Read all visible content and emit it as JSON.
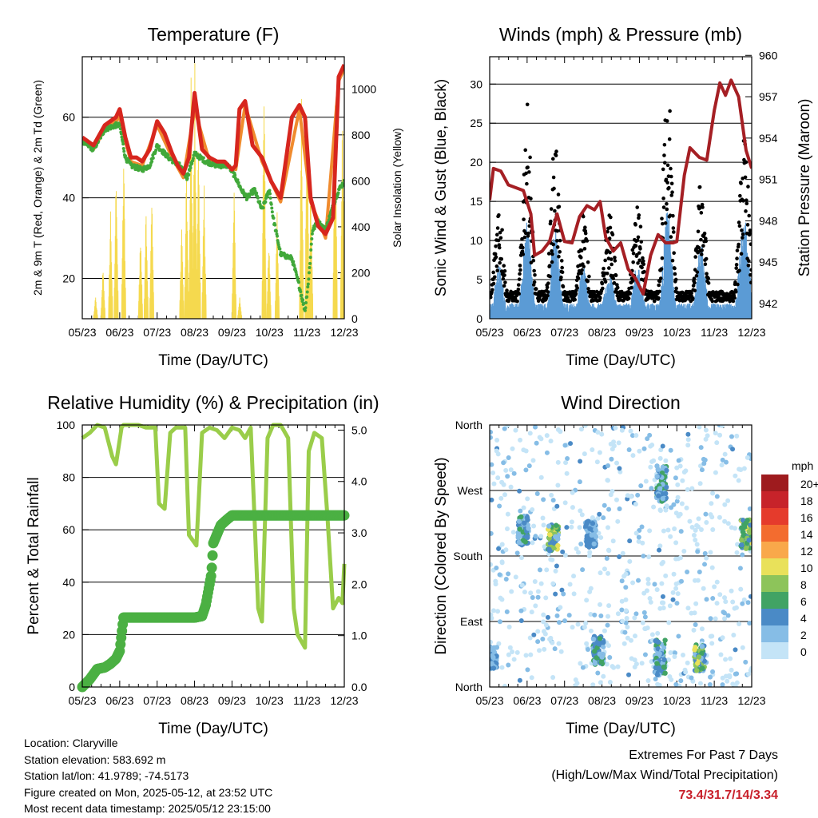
{
  "info": {
    "location": "Location: Claryville",
    "elevation": "Station elevation: 583.692 m",
    "latlon": "Station lat/lon: 41.9789; -74.5173",
    "created": "Figure created on Mon, 2025-05-12, at 23:52 UTC",
    "latest": "Most recent data timestamp: 2025/05/12 23:15:00"
  },
  "extremes": {
    "line1": "Extremes For Past 7 Days",
    "line2": "(High/Low/Max Wind/Total Precipitation)",
    "values": "73.4/31.7/14/3.34"
  },
  "chart_data": [
    {
      "id": "temperature",
      "type": "line",
      "title": "Temperature (F)",
      "xlabel": "Time (Day/UTC)",
      "ylabel": "2m & 9m T (Red, Orange) & 2m Td (Green)",
      "y2label": "Solar Insolation (Yellow)",
      "x_ticks": [
        "05/23",
        "06/23",
        "07/23",
        "08/23",
        "09/23",
        "10/23",
        "11/23",
        "12/23"
      ],
      "xlim": [
        0,
        7
      ],
      "ylim": [
        10,
        75
      ],
      "y_ticks": [
        20,
        40,
        60
      ],
      "y2lim": [
        0,
        1140
      ],
      "y2_ticks": [
        0,
        200,
        400,
        600,
        800,
        1000
      ],
      "gridlines": [
        20,
        40,
        60
      ],
      "series": [
        {
          "axis": "y",
          "color": "#d7261e",
          "style": "thick-line",
          "x": [
            0,
            0.3,
            0.6,
            0.9,
            1.0,
            1.15,
            1.3,
            1.45,
            1.6,
            1.8,
            2.0,
            2.2,
            2.4,
            2.55,
            2.7,
            2.85,
            3.0,
            3.2,
            3.4,
            3.6,
            3.8,
            4.0,
            4.1,
            4.2,
            4.35,
            4.55,
            4.8,
            5.05,
            5.3,
            5.6,
            5.8,
            5.95,
            6.1,
            6.3,
            6.5,
            6.7,
            6.85,
            7.0
          ],
          "y": [
            55,
            53,
            58,
            60,
            62,
            55,
            50,
            50,
            49,
            52,
            59,
            56,
            51,
            48,
            46,
            50,
            66,
            52,
            50,
            49,
            49,
            47,
            48,
            62,
            64,
            53,
            50,
            44,
            40,
            60,
            63,
            60,
            40,
            33,
            31,
            35,
            70,
            73
          ]
        },
        {
          "axis": "y",
          "color": "#f08b2e",
          "style": "line",
          "x": [
            0,
            0.3,
            0.6,
            0.9,
            1.0,
            1.15,
            1.3,
            1.6,
            2.0,
            2.4,
            2.7,
            3.0,
            3.4,
            3.8,
            4.1,
            4.35,
            4.8,
            5.3,
            5.8,
            6.1,
            6.5,
            6.85,
            7.0
          ],
          "y": [
            54,
            52,
            57,
            59,
            60,
            54,
            49,
            48,
            58,
            50,
            45,
            62,
            49,
            48,
            47,
            63,
            49,
            39,
            62,
            39,
            30,
            69,
            72
          ]
        },
        {
          "axis": "y",
          "color": "#41a83a",
          "style": "dots",
          "x": [
            0,
            0.3,
            0.6,
            0.9,
            1.0,
            1.15,
            1.3,
            1.6,
            1.8,
            2.0,
            2.3,
            2.6,
            2.8,
            3.0,
            3.3,
            3.6,
            3.9,
            4.1,
            4.25,
            4.4,
            4.6,
            4.8,
            5.0,
            5.1,
            5.3,
            5.6,
            5.8,
            5.95,
            6.05,
            6.15,
            6.3,
            6.5,
            6.7,
            6.85,
            7.0
          ],
          "y": [
            54,
            52,
            57,
            58,
            58,
            50,
            48,
            47,
            48,
            53,
            50,
            48,
            45,
            51,
            49,
            48,
            48,
            45,
            42,
            40,
            42,
            37,
            42,
            35,
            26,
            25,
            18,
            12,
            20,
            32,
            34,
            32,
            38,
            42,
            44
          ]
        },
        {
          "axis": "y2",
          "color": "#f5d94e",
          "style": "spikes",
          "peaks_x": [
            0.35,
            0.55,
            0.75,
            0.9,
            1.1,
            1.55,
            1.7,
            1.85,
            2.65,
            2.78,
            2.9,
            3.0,
            3.1,
            3.25,
            4.05,
            4.2,
            4.85,
            4.98,
            5.2,
            5.85,
            6.0,
            6.1,
            6.75,
            6.95
          ],
          "peaks_y": [
            100,
            250,
            500,
            700,
            760,
            400,
            520,
            600,
            450,
            700,
            1050,
            1130,
            850,
            600,
            600,
            100,
            1050,
            380,
            500,
            960,
            1050,
            650,
            1080,
            1000
          ]
        }
      ]
    },
    {
      "id": "winds",
      "type": "scatter",
      "title": "Winds (mph) & Pressure (mb)",
      "xlabel": "Time (Day/UTC)",
      "ylabel": "Sonic Wind & Gust (Blue, Black)",
      "y2label": "Station Pressure (Maroon)",
      "x_ticks": [
        "05/23",
        "06/23",
        "07/23",
        "08/23",
        "09/23",
        "10/23",
        "11/23",
        "12/23"
      ],
      "xlim": [
        0,
        7
      ],
      "ylim": [
        0,
        33.5
      ],
      "y_ticks": [
        0,
        5,
        10,
        15,
        20,
        25,
        30
      ],
      "y2lim": [
        940.9,
        959.9
      ],
      "y2_ticks": [
        942,
        945,
        948,
        951,
        954,
        957,
        960
      ],
      "gridlines": [
        5,
        10,
        15,
        20,
        25,
        30
      ],
      "pressure": {
        "color": "#a51f24",
        "x": [
          0,
          0.1,
          0.3,
          0.5,
          0.7,
          0.9,
          1.1,
          1.2,
          1.4,
          1.6,
          1.8,
          2.0,
          2.2,
          2.4,
          2.6,
          2.8,
          2.95,
          3.1,
          3.3,
          3.5,
          3.7,
          3.9,
          4.1,
          4.3,
          4.5,
          4.7,
          4.9,
          5.0,
          5.2,
          5.35,
          5.6,
          5.8,
          6.0,
          6.15,
          6.3,
          6.45,
          6.65,
          6.85,
          7.0
        ],
        "y": [
          949.5,
          951.8,
          951.6,
          950.6,
          950.4,
          950.2,
          948.5,
          945.5,
          945.8,
          946.5,
          948.5,
          946.5,
          946.4,
          948.3,
          949.1,
          948.8,
          949.4,
          946.8,
          945.8,
          946.4,
          944.5,
          943.8,
          942.7,
          945.5,
          947.0,
          946.4,
          946.4,
          946.5,
          951.3,
          953.3,
          952.6,
          952.4,
          956.0,
          958.0,
          957.1,
          958.2,
          957.0,
          953.1,
          951.8
        ]
      },
      "wind_color": "#5b9bd5",
      "gust_color": "#000000",
      "wind_bursts": [
        {
          "center": 0.25,
          "width": 0.22,
          "wind_max": 7,
          "gust_max": 14
        },
        {
          "center": 1.0,
          "width": 0.22,
          "wind_max": 13,
          "gust_max": 26
        },
        {
          "center": 1.75,
          "width": 0.22,
          "wind_max": 12,
          "gust_max": 22
        },
        {
          "center": 2.5,
          "width": 0.22,
          "wind_max": 7,
          "gust_max": 13
        },
        {
          "center": 3.2,
          "width": 0.25,
          "wind_max": 6,
          "gust_max": 12
        },
        {
          "center": 3.95,
          "width": 0.25,
          "wind_max": 7,
          "gust_max": 13
        },
        {
          "center": 4.75,
          "width": 0.22,
          "wind_max": 14,
          "gust_max": 31
        },
        {
          "center": 5.65,
          "width": 0.22,
          "wind_max": 10,
          "gust_max": 17
        },
        {
          "center": 6.8,
          "width": 0.25,
          "wind_max": 13,
          "gust_max": 22
        }
      ]
    },
    {
      "id": "humidity",
      "type": "line",
      "title": "Relative Humidity (%) & Precipitation (in)",
      "xlabel": "Time (Day/UTC)",
      "ylabel": "Percent & Total Rainfall",
      "x_ticks": [
        "05/23",
        "06/23",
        "07/23",
        "08/23",
        "09/23",
        "10/23",
        "11/23",
        "12/23"
      ],
      "xlim": [
        0,
        7
      ],
      "ylim": [
        0,
        100
      ],
      "y_ticks": [
        0,
        20,
        40,
        60,
        80,
        100
      ],
      "y2lim": [
        0,
        5.1
      ],
      "y2_ticks": [
        "0.0",
        "1.0",
        "2.0",
        "3.0",
        "4.0",
        "5.0"
      ],
      "y2_tick_values": [
        0,
        1,
        2,
        3,
        4,
        5
      ],
      "gridlines": [
        20,
        40,
        60,
        80
      ],
      "series": [
        {
          "name": "RH",
          "axis": "y",
          "color": "#9acd4a",
          "x": [
            0,
            0.2,
            0.4,
            0.6,
            0.8,
            0.9,
            1.05,
            1.1,
            1.3,
            1.5,
            1.7,
            1.95,
            2.05,
            2.2,
            2.35,
            2.5,
            2.75,
            2.85,
            3.05,
            3.2,
            3.4,
            3.6,
            3.8,
            4.0,
            4.2,
            4.35,
            4.5,
            4.6,
            4.7,
            4.8,
            4.95,
            5.1,
            5.3,
            5.5,
            5.65,
            5.75,
            5.95,
            6.05,
            6.2,
            6.4,
            6.55,
            6.7,
            6.85,
            6.95,
            7.0
          ],
          "y": [
            95,
            97,
            100,
            99,
            88,
            85,
            99,
            100,
            100,
            100,
            99,
            99,
            70,
            68,
            97,
            99,
            99,
            58,
            54,
            97,
            99,
            98,
            95,
            99,
            98,
            95,
            99,
            65,
            30,
            25,
            95,
            100,
            100,
            95,
            30,
            20,
            15,
            90,
            97,
            95,
            65,
            30,
            34,
            32,
            47
          ]
        },
        {
          "name": "Precip",
          "axis": "y2",
          "color": "#4bb043",
          "x": [
            0,
            0.2,
            0.4,
            0.6,
            0.75,
            0.9,
            1.0,
            1.1,
            1.2,
            1.5,
            2.0,
            2.5,
            3.0,
            3.2,
            3.3,
            3.45,
            3.5,
            3.7,
            3.85,
            4.0,
            4.2,
            5.0,
            6.0,
            7.0
          ],
          "y": [
            0.0,
            0.15,
            0.35,
            0.38,
            0.45,
            0.55,
            0.7,
            1.35,
            1.35,
            1.35,
            1.35,
            1.35,
            1.35,
            1.38,
            1.6,
            2.2,
            2.8,
            3.15,
            3.25,
            3.34,
            3.34,
            3.34,
            3.34,
            3.34
          ]
        }
      ]
    },
    {
      "id": "wind-direction",
      "type": "scatter",
      "title": "Wind Direction",
      "xlabel": "Time (Day/UTC)",
      "ylabel": "Direction (Colored By Speed)",
      "x_ticks": [
        "05/23",
        "06/23",
        "07/23",
        "08/23",
        "09/23",
        "10/23",
        "11/23",
        "12/23"
      ],
      "xlim": [
        0,
        7
      ],
      "ylim": [
        0,
        360
      ],
      "y_ticks": [
        "North",
        "East",
        "South",
        "West",
        "North"
      ],
      "y_tick_values": [
        0,
        90,
        180,
        270,
        360
      ],
      "gridlines": [
        90,
        180,
        270
      ],
      "clusters": [
        {
          "center": 0.05,
          "dir": 40,
          "spread": 15,
          "speed": 5
        },
        {
          "center": 0.9,
          "dir": 215,
          "spread": 20,
          "speed": 6
        },
        {
          "center": 1.7,
          "dir": 205,
          "spread": 18,
          "speed": 9
        },
        {
          "center": 2.7,
          "dir": 210,
          "spread": 18,
          "speed": 5
        },
        {
          "center": 2.9,
          "dir": 50,
          "spread": 20,
          "speed": 6
        },
        {
          "center": 4.55,
          "dir": 40,
          "spread": 25,
          "speed": 7
        },
        {
          "center": 4.6,
          "dir": 280,
          "spread": 25,
          "speed": 6
        },
        {
          "center": 5.6,
          "dir": 40,
          "spread": 18,
          "speed": 9
        },
        {
          "center": 6.85,
          "dir": 210,
          "spread": 20,
          "speed": 9
        }
      ],
      "colorbar": {
        "title": "mph",
        "labels": [
          "20+",
          "18",
          "16",
          "14",
          "12",
          "10",
          "8",
          "6",
          "4",
          "2",
          "0"
        ],
        "colors": [
          "#9e1b1e",
          "#c7232a",
          "#e53b2c",
          "#f36c2f",
          "#f9a84a",
          "#e9e15a",
          "#8dc45a",
          "#41a364",
          "#4a8ac6",
          "#86bde6",
          "#c4e4f7"
        ]
      }
    }
  ]
}
